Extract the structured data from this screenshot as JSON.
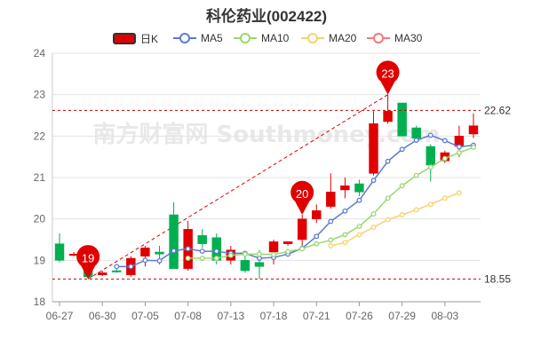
{
  "title": "科伦药业(002422)",
  "legend": [
    {
      "label": "日K",
      "kind": "candle",
      "color": "#e10000"
    },
    {
      "label": "MA5",
      "kind": "ma",
      "color": "#5b7bd0"
    },
    {
      "label": "MA10",
      "kind": "ma",
      "color": "#98d86f"
    },
    {
      "label": "MA20",
      "kind": "ma",
      "color": "#f4d36c"
    },
    {
      "label": "MA30",
      "kind": "ma",
      "color": "#f47878"
    }
  ],
  "chart_data": {
    "type": "candlestick",
    "title": "科伦药业(002422)",
    "ylim": [
      18,
      24
    ],
    "yticks": [
      18,
      19,
      20,
      21,
      22,
      23,
      24
    ],
    "xtick_labels": [
      {
        "idx": 0,
        "label": "06-27"
      },
      {
        "idx": 3,
        "label": "06-30"
      },
      {
        "idx": 6,
        "label": "07-05"
      },
      {
        "idx": 9,
        "label": "07-08"
      },
      {
        "idx": 12,
        "label": "07-13"
      },
      {
        "idx": 15,
        "label": "07-18"
      },
      {
        "idx": 18,
        "label": "07-21"
      },
      {
        "idx": 21,
        "label": "07-26"
      },
      {
        "idx": 24,
        "label": "07-29"
      },
      {
        "idx": 27,
        "label": "08-03"
      }
    ],
    "up_color": "#e10000",
    "down_color": "#00b050",
    "candles": [
      {
        "o": 19.4,
        "c": 19.0,
        "h": 19.65,
        "l": 18.95
      },
      {
        "o": 19.15,
        "c": 19.15,
        "h": 19.2,
        "l": 19.1
      },
      {
        "o": 18.95,
        "c": 18.6,
        "h": 19.0,
        "l": 18.55
      },
      {
        "o": 18.65,
        "c": 18.7,
        "h": 18.75,
        "l": 18.62
      },
      {
        "o": 18.75,
        "c": 18.72,
        "h": 18.8,
        "l": 18.7
      },
      {
        "o": 18.65,
        "c": 19.05,
        "h": 19.1,
        "l": 18.6
      },
      {
        "o": 19.1,
        "c": 19.3,
        "h": 19.35,
        "l": 18.85
      },
      {
        "o": 19.2,
        "c": 19.15,
        "h": 19.35,
        "l": 18.9
      },
      {
        "o": 20.1,
        "c": 18.8,
        "h": 20.4,
        "l": 18.8
      },
      {
        "o": 18.8,
        "c": 19.75,
        "h": 19.95,
        "l": 18.75
      },
      {
        "o": 19.6,
        "c": 19.4,
        "h": 19.75,
        "l": 19.3
      },
      {
        "o": 19.55,
        "c": 19.0,
        "h": 19.65,
        "l": 18.9
      },
      {
        "o": 19.0,
        "c": 19.25,
        "h": 19.35,
        "l": 18.9
      },
      {
        "o": 19.0,
        "c": 18.75,
        "h": 19.15,
        "l": 18.7
      },
      {
        "o": 18.95,
        "c": 18.85,
        "h": 19.25,
        "l": 18.55
      },
      {
        "o": 19.2,
        "c": 19.45,
        "h": 19.5,
        "l": 18.9
      },
      {
        "o": 19.4,
        "c": 19.45,
        "h": 19.45,
        "l": 19.35
      },
      {
        "o": 19.5,
        "c": 20.0,
        "h": 20.1,
        "l": 19.35
      },
      {
        "o": 20.0,
        "c": 20.2,
        "h": 20.35,
        "l": 19.9
      },
      {
        "o": 20.3,
        "c": 20.65,
        "h": 21.1,
        "l": 20.25
      },
      {
        "o": 20.7,
        "c": 20.8,
        "h": 21.0,
        "l": 20.5
      },
      {
        "o": 20.85,
        "c": 20.65,
        "h": 20.95,
        "l": 20.55
      },
      {
        "o": 21.1,
        "c": 22.3,
        "h": 22.6,
        "l": 21.05
      },
      {
        "o": 22.35,
        "c": 22.6,
        "h": 23.0,
        "l": 22.3
      },
      {
        "o": 22.8,
        "c": 22.0,
        "h": 22.8,
        "l": 22.0
      },
      {
        "o": 22.2,
        "c": 21.95,
        "h": 22.25,
        "l": 21.9
      },
      {
        "o": 21.75,
        "c": 21.3,
        "h": 21.8,
        "l": 20.9
      },
      {
        "o": 21.4,
        "c": 21.6,
        "h": 21.65,
        "l": 21.35
      },
      {
        "o": 21.75,
        "c": 22.0,
        "h": 22.25,
        "l": 21.5
      },
      {
        "o": 22.05,
        "c": 22.25,
        "h": 22.55,
        "l": 21.95
      }
    ],
    "series": [
      {
        "name": "MA5",
        "color": "#5b7bd0",
        "start": 4,
        "values": [
          18.85,
          18.85,
          19.0,
          18.99,
          19.23,
          19.28,
          19.22,
          19.22,
          19.17,
          19.17,
          19.05,
          19.07,
          19.15,
          19.29,
          19.58,
          19.94,
          20.19,
          20.45,
          20.93,
          21.39,
          21.68,
          21.9,
          22.02,
          21.89,
          21.74,
          21.78
        ]
      },
      {
        "name": "MA10",
        "color": "#98d86f",
        "start": 9,
        "values": [
          19.05,
          19.05,
          19.05,
          19.12,
          19.15,
          19.15,
          19.14,
          19.21,
          19.28,
          19.4,
          19.49,
          19.62,
          19.82,
          20.12,
          20.5,
          20.8,
          21.05,
          21.25,
          21.46,
          21.6,
          21.73
        ]
      },
      {
        "name": "MA20",
        "color": "#f4d36c",
        "start": 19,
        "values": [
          19.35,
          19.43,
          19.62,
          19.8,
          19.98,
          20.1,
          20.22,
          20.35,
          20.5,
          20.63
        ]
      }
    ],
    "reference_lines": [
      {
        "value": 22.62,
        "label": "22.62"
      },
      {
        "value": 18.55,
        "label": "18.55"
      }
    ],
    "markers": [
      {
        "idx": 2,
        "value": 18.55,
        "label": "19"
      },
      {
        "idx": 17,
        "value": 20.1,
        "label": "20"
      },
      {
        "idx": 23,
        "value": 23.0,
        "label": "23"
      }
    ],
    "watermark": "南方财富网 Southmoney.com"
  }
}
